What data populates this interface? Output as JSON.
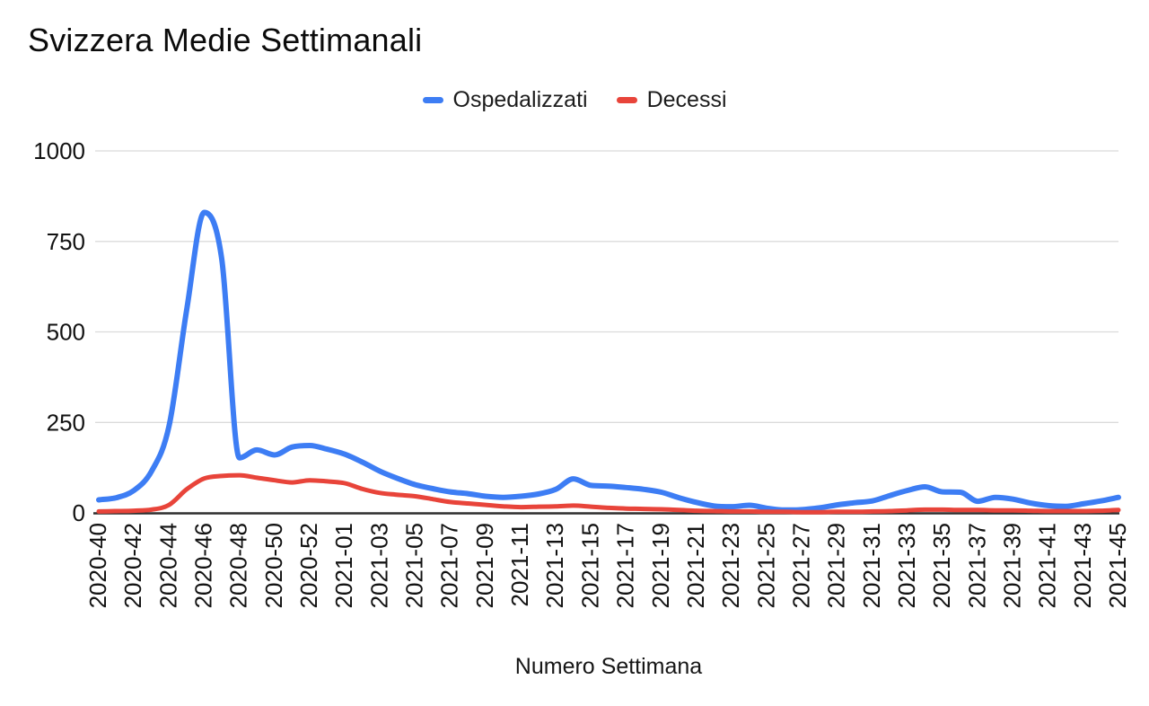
{
  "title": "Svizzera Medie Settimanali",
  "legend": {
    "items": [
      {
        "label": "Ospedalizzati",
        "color": "#3d7df4"
      },
      {
        "label": "Decessi",
        "color": "#e8443a"
      }
    ]
  },
  "chart_data": {
    "type": "line",
    "title": "Svizzera Medie Settimanali",
    "xlabel": "Numero Settimana",
    "ylabel": "",
    "ylim": [
      0,
      1000
    ],
    "y_ticks": [
      0,
      250,
      500,
      750,
      1000
    ],
    "grid": "horizontal",
    "legend_position": "top",
    "smooth": true,
    "x_tick_step": 2,
    "x_tick_labels": [
      "2020-40",
      "2020-42",
      "2020-44",
      "2020-46",
      "2020-48",
      "2020-50",
      "2020-52",
      "2021-01",
      "2021-03",
      "2021-05",
      "2021-07",
      "2021-09",
      "2021-11",
      "2021-13",
      "2021-15",
      "2021-17",
      "2021-19",
      "2021-21",
      "2021-23",
      "2021-25",
      "2021-27",
      "2021-29",
      "2021-31",
      "2021-33",
      "2021-35",
      "2021-37",
      "2021-39",
      "2021-41",
      "2021-43",
      "2021-45"
    ],
    "categories": [
      "2020-40",
      "2020-41",
      "2020-42",
      "2020-43",
      "2020-44",
      "2020-45",
      "2020-46",
      "2020-47",
      "2020-48",
      "2020-49",
      "2020-50",
      "2020-51",
      "2020-52",
      "2020-53",
      "2021-01",
      "2021-02",
      "2021-03",
      "2021-04",
      "2021-05",
      "2021-06",
      "2021-07",
      "2021-08",
      "2021-09",
      "2021-10",
      "2021-11",
      "2021-12",
      "2021-13",
      "2021-14",
      "2021-15",
      "2021-16",
      "2021-17",
      "2021-18",
      "2021-19",
      "2021-20",
      "2021-21",
      "2021-22",
      "2021-23",
      "2021-24",
      "2021-25",
      "2021-26",
      "2021-27",
      "2021-28",
      "2021-29",
      "2021-30",
      "2021-31",
      "2021-32",
      "2021-33",
      "2021-34",
      "2021-35",
      "2021-36",
      "2021-37",
      "2021-38",
      "2021-39",
      "2021-40",
      "2021-41",
      "2021-42",
      "2021-43",
      "2021-44",
      "2021-45"
    ],
    "series": [
      {
        "name": "Ospedalizzati",
        "color": "#3d7df4",
        "line_width": 6,
        "values": [
          36,
          42,
          62,
          115,
          240,
          560,
          830,
          700,
          152,
          174,
          160,
          182,
          186,
          176,
          162,
          140,
          115,
          95,
          78,
          67,
          58,
          53,
          46,
          43,
          46,
          52,
          65,
          94,
          76,
          74,
          70,
          65,
          57,
          42,
          29,
          19,
          17,
          21,
          13,
          8,
          9,
          14,
          22,
          28,
          33,
          48,
          62,
          72,
          58,
          57,
          32,
          43,
          38,
          27,
          20,
          18,
          25,
          33,
          43
        ]
      },
      {
        "name": "Decessi",
        "color": "#e8443a",
        "line_width": 5,
        "values": [
          4,
          5,
          6,
          9,
          22,
          65,
          95,
          102,
          104,
          97,
          90,
          84,
          90,
          87,
          82,
          66,
          55,
          50,
          46,
          38,
          30,
          26,
          22,
          18,
          16,
          17,
          18,
          20,
          17,
          14,
          12,
          11,
          10,
          8,
          6,
          5,
          4,
          4,
          3,
          3,
          2,
          2,
          3,
          3,
          4,
          5,
          7,
          9,
          9,
          8,
          8,
          7,
          7,
          6,
          5,
          5,
          5,
          6,
          8
        ]
      }
    ]
  }
}
